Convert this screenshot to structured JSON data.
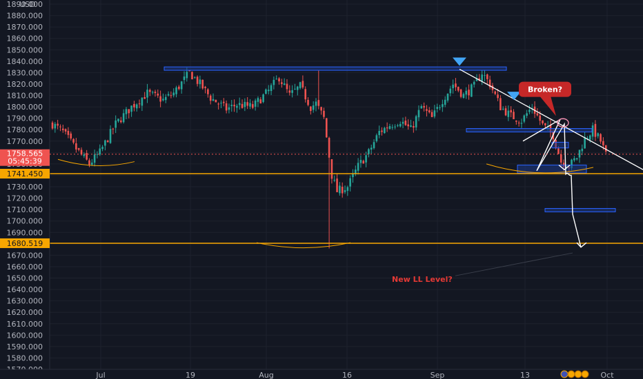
{
  "chart_data": {
    "type": "candlestick",
    "currency": "USD",
    "ylim": [
      1570,
      1890
    ],
    "y_ticks": [
      "1570.000",
      "1580.000",
      "1590.000",
      "1600.000",
      "1610.000",
      "1620.000",
      "1630.000",
      "1640.000",
      "1650.000",
      "1660.000",
      "1670.000",
      "1680.000",
      "1690.000",
      "1700.000",
      "1710.000",
      "1720.000",
      "1730.000",
      "1740.000",
      "1750.000",
      "1760.000",
      "1770.000",
      "1780.000",
      "1790.000",
      "1800.000",
      "1810.000",
      "1820.000",
      "1830.000",
      "1840.000",
      "1850.000",
      "1860.000",
      "1870.000",
      "1880.000",
      "1890.000"
    ],
    "x_ticks": [
      "Jul",
      "19",
      "Aug",
      "16",
      "Sep",
      "13",
      "Oct"
    ],
    "price_badge": {
      "price": "1758.565",
      "countdown": "05:45:39"
    },
    "support_labels": [
      {
        "label": "1741.450",
        "value": 1741.45
      },
      {
        "label": "1680.519",
        "value": 1680.519
      }
    ],
    "annotations": {
      "broken": "Broken?",
      "new_ll": "New LL Level?"
    },
    "key_points": [
      {
        "t": 0,
        "v": 1785
      },
      {
        "t": 4,
        "v": 1778
      },
      {
        "t": 8,
        "v": 1766
      },
      {
        "t": 12,
        "v": 1755
      },
      {
        "t": 14,
        "v": 1750
      },
      {
        "t": 18,
        "v": 1760
      },
      {
        "t": 24,
        "v": 1785
      },
      {
        "t": 30,
        "v": 1800
      },
      {
        "t": 36,
        "v": 1812
      },
      {
        "t": 42,
        "v": 1806
      },
      {
        "t": 46,
        "v": 1812
      },
      {
        "t": 52,
        "v": 1830
      },
      {
        "t": 56,
        "v": 1820
      },
      {
        "t": 60,
        "v": 1808
      },
      {
        "t": 66,
        "v": 1798
      },
      {
        "t": 70,
        "v": 1802
      },
      {
        "t": 76,
        "v": 1800
      },
      {
        "t": 82,
        "v": 1814
      },
      {
        "t": 86,
        "v": 1826
      },
      {
        "t": 90,
        "v": 1810
      },
      {
        "t": 94,
        "v": 1818
      },
      {
        "t": 98,
        "v": 1800
      },
      {
        "t": 100,
        "v": 1803
      },
      {
        "t": 103,
        "v": 1790
      },
      {
        "t": 106,
        "v": 1740
      },
      {
        "t": 108,
        "v": 1726
      },
      {
        "t": 112,
        "v": 1730
      },
      {
        "t": 116,
        "v": 1748
      },
      {
        "t": 120,
        "v": 1760
      },
      {
        "t": 124,
        "v": 1778
      },
      {
        "t": 128,
        "v": 1784
      },
      {
        "t": 132,
        "v": 1788
      },
      {
        "t": 136,
        "v": 1780
      },
      {
        "t": 140,
        "v": 1800
      },
      {
        "t": 144,
        "v": 1790
      },
      {
        "t": 148,
        "v": 1806
      },
      {
        "t": 152,
        "v": 1820
      },
      {
        "t": 156,
        "v": 1810
      },
      {
        "t": 160,
        "v": 1818
      },
      {
        "t": 163,
        "v": 1830
      },
      {
        "t": 166,
        "v": 1820
      },
      {
        "t": 170,
        "v": 1800
      },
      {
        "t": 174,
        "v": 1792
      },
      {
        "t": 178,
        "v": 1788
      },
      {
        "t": 182,
        "v": 1800
      },
      {
        "t": 186,
        "v": 1784
      },
      {
        "t": 190,
        "v": 1775
      },
      {
        "t": 193,
        "v": 1752
      },
      {
        "t": 196,
        "v": 1748
      },
      {
        "t": 199,
        "v": 1756
      },
      {
        "t": 202,
        "v": 1772
      },
      {
        "t": 205,
        "v": 1780
      },
      {
        "t": 208,
        "v": 1770
      },
      {
        "t": 210,
        "v": 1758
      }
    ],
    "spikes": [
      {
        "t": 105,
        "low": 1676
      },
      {
        "t": 101,
        "high": 1832
      }
    ],
    "style": {
      "up_color": "#26a69a",
      "down_color": "#ef5350",
      "zone_fill": "#1e3a8a",
      "zone_stroke": "#2962ff",
      "support_color": "#f7a600",
      "trend_color": "#ffffff",
      "note_color": "#c62828",
      "badge_color": "#ef5350",
      "grid": true
    }
  }
}
